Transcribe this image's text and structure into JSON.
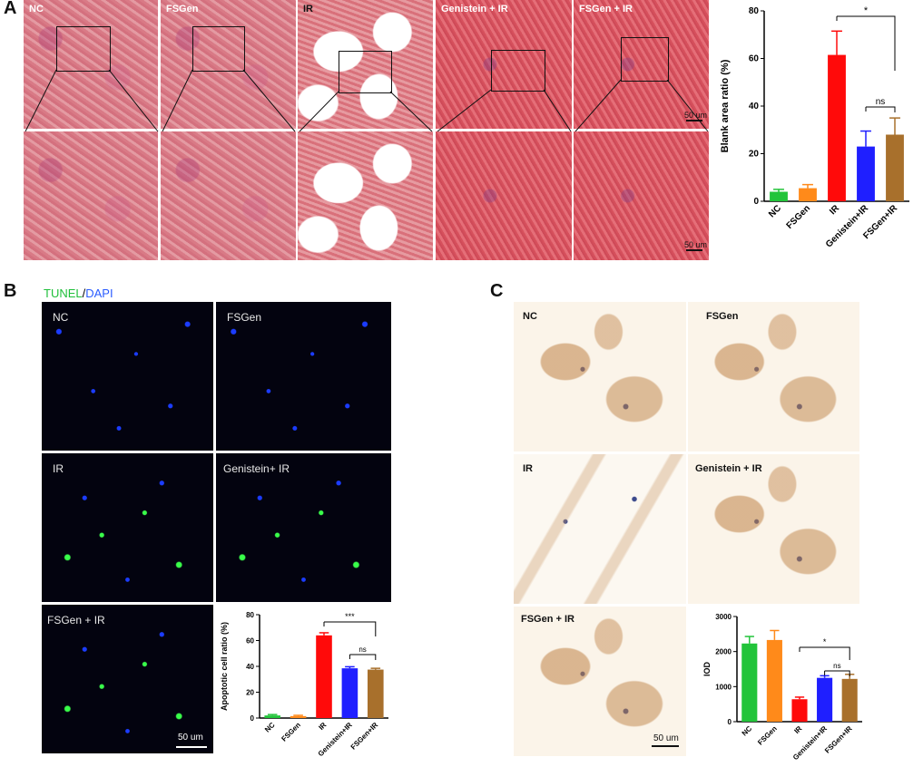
{
  "panels": {
    "a": {
      "letter": "A",
      "labels": [
        "NC",
        "FSGen",
        "IR",
        "Genistein + IR",
        "FSGen + IR"
      ],
      "scale_top": "50 um",
      "scale_bottom": "50 um"
    },
    "b": {
      "letter": "B",
      "stain_tunel": "TUNEL",
      "stain_sep": "/",
      "stain_dapi": "DAPI",
      "labels": [
        "NC",
        "FSGen",
        "IR",
        "Genistein+ IR",
        "FSGen + IR"
      ],
      "scale": "50 um"
    },
    "c": {
      "letter": "C",
      "labels": [
        "NC",
        "FSGen",
        "IR",
        "Genistein + IR",
        "FSGen + IR"
      ],
      "scale": "50 um"
    }
  },
  "colors": {
    "nc": "#22c43a",
    "fsgen": "#ff8a1a",
    "ir": "#ff0a0a",
    "genistein_ir": "#1f1fff",
    "fsgen_ir": "#a8702c",
    "tunel": "#1fbf3a",
    "dapi": "#2a5cff"
  },
  "chart_data": [
    {
      "type": "bar",
      "panel": "A",
      "categories": [
        "NC",
        "FSGen",
        "IR",
        "Genistein+IR",
        "FSGen+IR"
      ],
      "values": [
        4,
        5.5,
        61.5,
        23,
        28
      ],
      "errors": [
        1,
        1.5,
        10,
        6.5,
        7
      ],
      "ylabel": "Blank area ratio (%)",
      "ylim": [
        0,
        80
      ],
      "yticks": [
        0,
        20,
        40,
        60,
        80
      ],
      "significance": [
        {
          "from": "IR",
          "to": "FSGen+IR",
          "label": "*"
        },
        {
          "from": "Genistein+IR",
          "to": "FSGen+IR",
          "label": "ns"
        }
      ]
    },
    {
      "type": "bar",
      "panel": "B",
      "categories": [
        "NC",
        "FSGen",
        "IR",
        "Genistein+IR",
        "FSGen+IR"
      ],
      "values": [
        2,
        1.5,
        64,
        38.5,
        37.5
      ],
      "errors": [
        0.7,
        0.6,
        2,
        1.2,
        1
      ],
      "ylabel": "Apoptotic cell ratio (%)",
      "ylim": [
        0,
        80
      ],
      "yticks": [
        0,
        20,
        40,
        60,
        80
      ],
      "significance": [
        {
          "from": "IR",
          "to": "FSGen+IR",
          "label": "***"
        },
        {
          "from": "Genistein+IR",
          "to": "FSGen+IR",
          "label": "ns"
        }
      ]
    },
    {
      "type": "bar",
      "panel": "C",
      "categories": [
        "NC",
        "FSGen",
        "IR",
        "Genistein+IR",
        "FSGen+IR"
      ],
      "values": [
        2230,
        2330,
        640,
        1250,
        1220
      ],
      "errors": [
        200,
        270,
        60,
        60,
        130
      ],
      "ylabel": "IOD",
      "ylim": [
        0,
        3000
      ],
      "yticks": [
        0,
        1000,
        2000,
        3000
      ],
      "significance": [
        {
          "from": "IR",
          "to": "FSGen+IR",
          "label": "*"
        },
        {
          "from": "Genistein+IR",
          "to": "FSGen+IR",
          "label": "ns"
        }
      ]
    }
  ]
}
